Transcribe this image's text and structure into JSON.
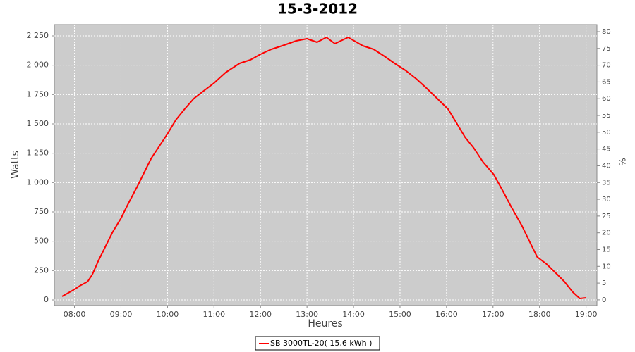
{
  "chart_data": {
    "type": "line",
    "title": "15-3-2012",
    "x_label": "Heures",
    "y_label": "Watts",
    "y2_label": "%",
    "x": [
      "07:44",
      "08:00",
      "08:08",
      "08:17",
      "08:23",
      "08:31",
      "08:40",
      "08:49",
      "09:00",
      "09:09",
      "09:21",
      "09:30",
      "09:39",
      "09:48",
      "10:00",
      "10:11",
      "10:22",
      "10:34",
      "10:48",
      "11:00",
      "11:15",
      "11:33",
      "11:47",
      "12:00",
      "12:14",
      "12:28",
      "12:46",
      "13:00",
      "13:13",
      "13:25",
      "13:36",
      "13:53",
      "14:12",
      "14:26",
      "14:40",
      "14:53",
      "15:07",
      "15:21",
      "15:34",
      "15:48",
      "16:02",
      "16:13",
      "16:24",
      "16:35",
      "16:47",
      "17:01",
      "17:12",
      "17:24",
      "17:37",
      "17:48",
      "17:57",
      "18:09",
      "18:23",
      "18:32",
      "18:43",
      "18:52",
      "19:00"
    ],
    "series": [
      {
        "name": "SB 3000TL-20( 15,6 kWh )",
        "color": "#ff0000",
        "values": [
          30,
          90,
          125,
          156,
          216,
          336,
          456,
          576,
          696,
          816,
          966,
          1086,
          1206,
          1296,
          1416,
          1536,
          1626,
          1716,
          1788,
          1848,
          1938,
          2016,
          2046,
          2094,
          2136,
          2166,
          2208,
          2226,
          2196,
          2238,
          2184,
          2238,
          2166,
          2136,
          2076,
          2016,
          1956,
          1884,
          1806,
          1716,
          1626,
          1506,
          1386,
          1296,
          1176,
          1068,
          936,
          786,
          636,
          486,
          366,
          306,
          216,
          156,
          66,
          12,
          18
        ]
      }
    ],
    "xlim": [
      "07:34",
      "19:14"
    ],
    "xticks": [
      "08:00",
      "09:00",
      "10:00",
      "11:00",
      "12:00",
      "13:00",
      "14:00",
      "15:00",
      "16:00",
      "17:00",
      "18:00",
      "19:00"
    ],
    "ylim": [
      -48,
      2346
    ],
    "yticks": [
      0,
      250,
      500,
      750,
      {
        "value": 1000,
        "label": "1 000"
      },
      {
        "value": 1250,
        "label": "1 250"
      },
      {
        "value": 1500,
        "label": "1 500"
      },
      {
        "value": 1750,
        "label": "1 750"
      },
      {
        "value": 2000,
        "label": "2 000"
      },
      {
        "value": 2250,
        "label": "2 250"
      }
    ],
    "y2lim": [
      -1.7,
      82.1
    ],
    "y2ticks": [
      0,
      5,
      10,
      15,
      20,
      25,
      30,
      35,
      40,
      45,
      50,
      55,
      60,
      65,
      70,
      75,
      80
    ],
    "grid": true
  }
}
